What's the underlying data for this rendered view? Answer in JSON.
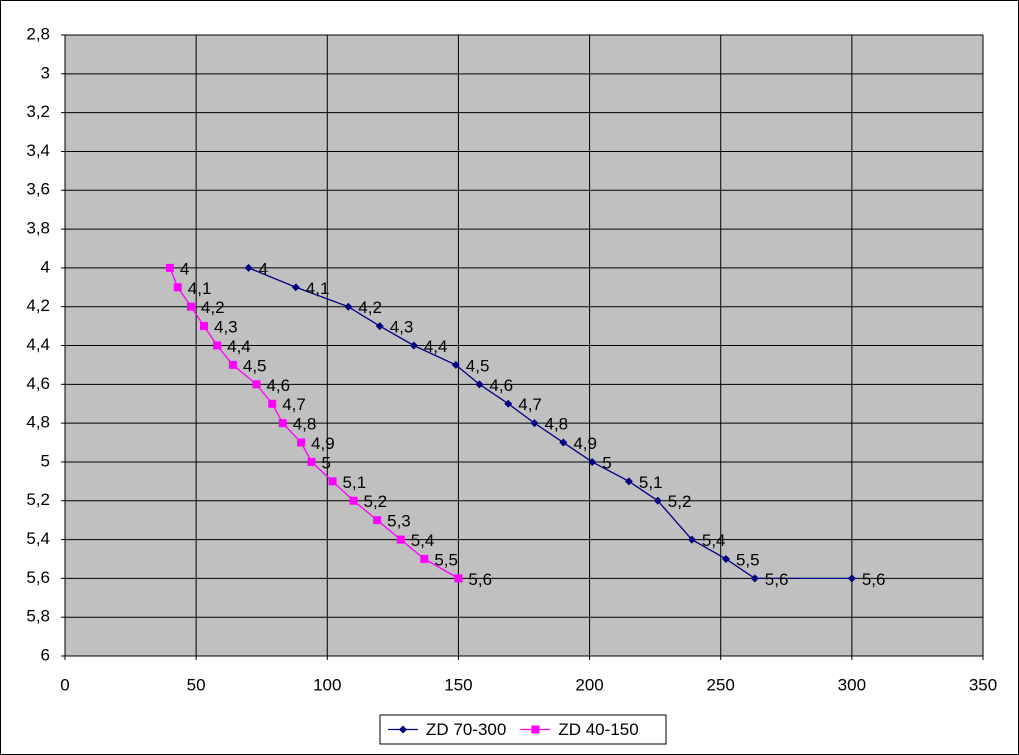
{
  "chart_data": {
    "type": "scatter",
    "xlim": [
      0,
      350
    ],
    "xticks": [
      0,
      50,
      100,
      150,
      200,
      250,
      300,
      350
    ],
    "ylim": [
      2.8,
      6
    ],
    "y_reversed": true,
    "yticks": [
      {
        "value": 2.8,
        "label": "2,8"
      },
      3,
      {
        "value": 3.2,
        "label": "3,2"
      },
      {
        "value": 3.4,
        "label": "3,4"
      },
      {
        "value": 3.6,
        "label": "3,6"
      },
      {
        "value": 3.8,
        "label": "3,8"
      },
      4,
      {
        "value": 4.2,
        "label": "4,2"
      },
      {
        "value": 4.4,
        "label": "4,4"
      },
      {
        "value": 4.6,
        "label": "4,6"
      },
      {
        "value": 4.8,
        "label": "4,8"
      },
      5,
      {
        "value": 5.2,
        "label": "5,2"
      },
      {
        "value": 5.4,
        "label": "5,4"
      },
      {
        "value": 5.6,
        "label": "5,6"
      },
      {
        "value": 5.8,
        "label": "5,8"
      },
      6
    ],
    "grid": true,
    "plot_background": "#c0c0c0",
    "legend": "bottom",
    "series": [
      {
        "name": "ZD 70-300",
        "color": "#000080",
        "marker": "diamond",
        "x": [
          70,
          88,
          108,
          120,
          133,
          149,
          158,
          169,
          179,
          190,
          201,
          215,
          226,
          239,
          252,
          263,
          300
        ],
        "values": [
          4,
          4.1,
          4.2,
          4.3,
          4.4,
          4.5,
          4.6,
          4.7,
          4.8,
          4.9,
          5,
          5.1,
          5.2,
          5.4,
          5.5,
          5.6,
          5.6
        ],
        "value_labels": [
          "4",
          "4,1",
          "4,2",
          "4,3",
          "4,4",
          "4,5",
          "4,6",
          "4,7",
          "4,8",
          "4,9",
          "5",
          "5,1",
          "5,2",
          "5,4",
          "5,5",
          "5,6",
          "5,6"
        ]
      },
      {
        "name": "ZD 40-150",
        "color": "#ff00ff",
        "marker": "square",
        "x": [
          40,
          43,
          48,
          53,
          58,
          64,
          73,
          79,
          83,
          90,
          94,
          102,
          110,
          119,
          128,
          137,
          150
        ],
        "values": [
          4,
          4.1,
          4.2,
          4.3,
          4.4,
          4.5,
          4.6,
          4.7,
          4.8,
          4.9,
          5,
          5.1,
          5.2,
          5.3,
          5.4,
          5.5,
          5.6
        ],
        "value_labels": [
          "4",
          "4,1",
          "4,2",
          "4,3",
          "4,4",
          "4,5",
          "4,6",
          "4,7",
          "4,8",
          "4,9",
          "5",
          "5,1",
          "5,2",
          "5,3",
          "5,4",
          "5,5",
          "5,6"
        ]
      }
    ]
  }
}
